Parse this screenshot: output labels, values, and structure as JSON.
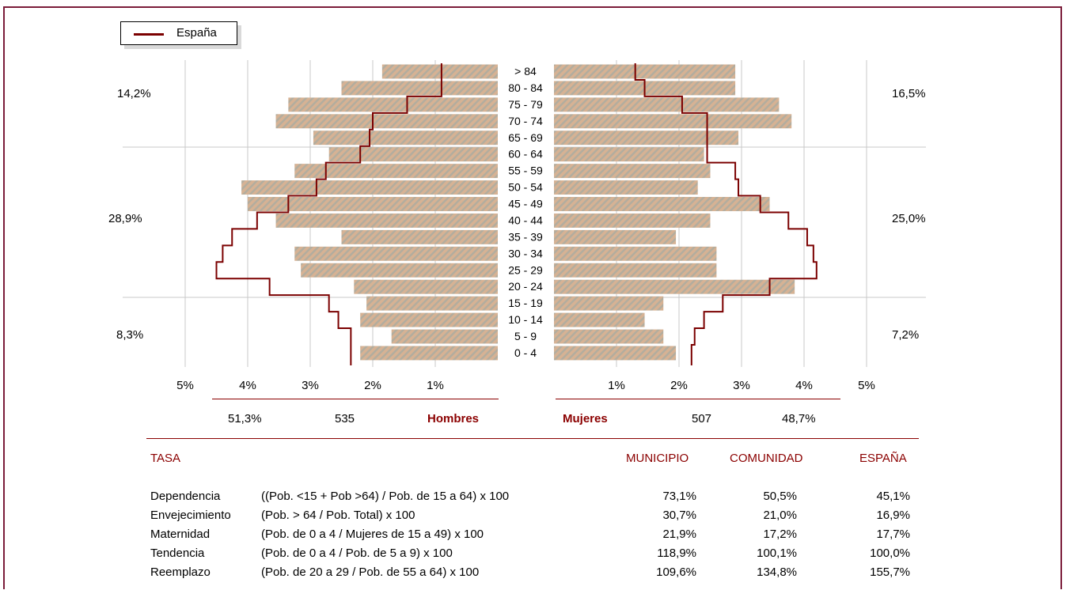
{
  "legend": {
    "label": "España"
  },
  "chart_data": {
    "type": "bar",
    "subtype": "population-pyramid",
    "categories": [
      "0 - 4",
      "5 - 9",
      "10 - 14",
      "15 - 19",
      "20 - 24",
      "25 - 29",
      "30 - 34",
      "35 - 39",
      "40 - 44",
      "45 - 49",
      "50 - 54",
      "55 - 59",
      "60 - 64",
      "65 - 69",
      "70 - 74",
      "75 - 79",
      "80 - 84",
      "> 84"
    ],
    "series": [
      {
        "name": "Hombres",
        "values": [
          2.2,
          1.7,
          2.2,
          2.1,
          2.3,
          3.15,
          3.25,
          2.5,
          3.55,
          4.0,
          4.1,
          3.25,
          2.7,
          2.95,
          3.55,
          3.35,
          2.5,
          1.85
        ]
      },
      {
        "name": "Mujeres",
        "values": [
          1.95,
          1.75,
          1.45,
          1.75,
          3.85,
          2.6,
          2.6,
          1.95,
          2.5,
          3.45,
          2.3,
          2.5,
          2.4,
          2.95,
          3.8,
          3.6,
          2.9,
          2.9
        ]
      },
      {
        "name": "España",
        "side": "left",
        "values": [
          2.35,
          2.35,
          2.55,
          2.7,
          3.65,
          4.5,
          4.4,
          4.25,
          3.85,
          3.35,
          2.9,
          2.75,
          2.2,
          2.05,
          2.0,
          1.45,
          0.9,
          0.9
        ]
      },
      {
        "name": "España",
        "side": "right",
        "values": [
          2.2,
          2.25,
          2.4,
          2.7,
          3.45,
          4.2,
          4.15,
          4.05,
          3.75,
          3.3,
          2.95,
          2.9,
          2.45,
          2.45,
          2.45,
          2.05,
          1.45,
          1.3
        ]
      }
    ],
    "xlim": [
      0,
      5
    ],
    "tick_labels_left": [
      "5%",
      "4%",
      "3%",
      "2%",
      "1%"
    ],
    "tick_labels_right": [
      "1%",
      "2%",
      "3%",
      "4%",
      "5%"
    ],
    "group_pct_left": [
      "14,2%",
      "28,9%",
      "8,3%"
    ],
    "group_pct_right": [
      "16,5%",
      "25,0%",
      "7,2%"
    ],
    "grid": true
  },
  "summary": {
    "hombres_pct": "51,3%",
    "hombres_count": "535",
    "hombres_label": "Hombres",
    "mujeres_label": "Mujeres",
    "mujeres_count": "507",
    "mujeres_pct": "48,7%"
  },
  "table": {
    "col_tasa": "TASA",
    "col_municipio": "MUNICIPIO",
    "col_comunidad": "COMUNIDAD",
    "col_espana": "ESPAÑA",
    "rows": [
      {
        "name": "Dependencia",
        "formula": "((Pob. <15 + Pob >64) / Pob. de 15 a 64) x 100",
        "municipio": "73,1%",
        "comunidad": "50,5%",
        "espana": "45,1%"
      },
      {
        "name": "Envejecimiento",
        "formula": "(Pob. > 64 / Pob. Total) x 100",
        "municipio": "30,7%",
        "comunidad": "21,0%",
        "espana": "16,9%"
      },
      {
        "name": "Maternidad",
        "formula": "(Pob. de 0 a 4 / Mujeres de 15 a 49) x 100",
        "municipio": "21,9%",
        "comunidad": "17,2%",
        "espana": "17,7%"
      },
      {
        "name": "Tendencia",
        "formula": "(Pob. de 0 a 4 / Pob. de 5 a 9) x 100",
        "municipio": "118,9%",
        "comunidad": "100,1%",
        "espana": "100,0%"
      },
      {
        "name": "Reemplazo",
        "formula": "(Pob. de 20 a 29 / Pob. de 55 a 64) x 100",
        "municipio": "109,6%",
        "comunidad": "134,8%",
        "espana": "155,7%"
      }
    ]
  }
}
